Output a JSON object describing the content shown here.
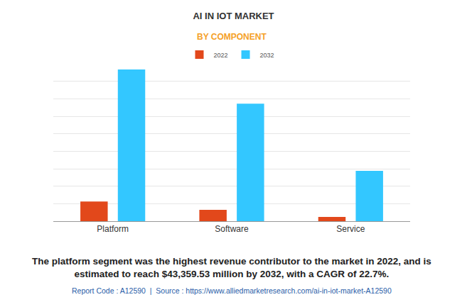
{
  "chart_data": {
    "type": "bar",
    "title": "AI IN IOT MARKET",
    "subtitle": "BY COMPONENT",
    "categories": [
      "Platform",
      "Software",
      "Service"
    ],
    "series": [
      {
        "name": "2022",
        "color": "#e2481b",
        "values": [
          5600,
          3240,
          1200
        ]
      },
      {
        "name": "2032",
        "color": "#33c7ff",
        "values": [
          43359.53,
          33600,
          14370
        ]
      }
    ],
    "ylim": [
      0,
      45000
    ],
    "yticks": [
      0,
      5000,
      10000,
      15000,
      20000,
      25000,
      30000,
      35000,
      40000,
      45000
    ],
    "grid": true,
    "tick_labels": "x",
    "legend": "top",
    "caption": "The platform segment was the highest revenue contributor to the market in 2022, and is estimated to reach $43,359.53 million by 2032, with a CAGR of 22.7%.",
    "source": "Report Code : A12590  |  Source : https://www.alliedmarketresearch.com/ai-in-iot-market-A12590"
  }
}
